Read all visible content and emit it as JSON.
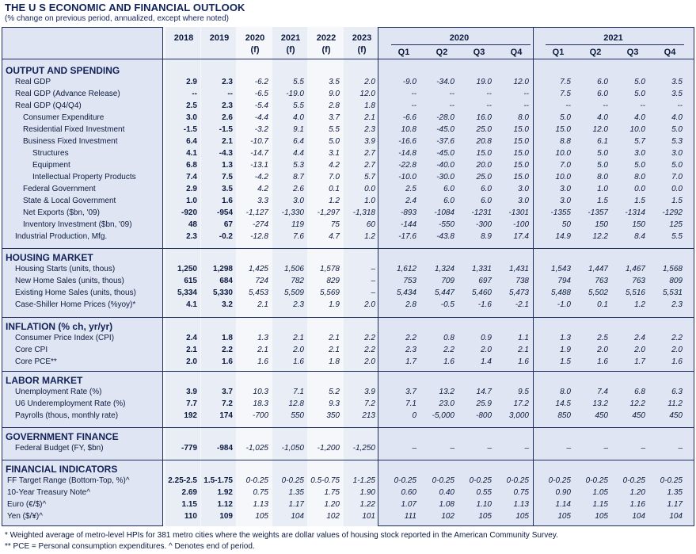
{
  "title": "THE U S ECONOMIC AND FINANCIAL OUTLOOK",
  "subtitle": "(% change on previous period, annualized, except where noted)",
  "annual_headers": [
    {
      "year": "2018",
      "sub": ""
    },
    {
      "year": "2019",
      "sub": ""
    },
    {
      "year": "2020",
      "sub": "(f)"
    },
    {
      "year": "2021",
      "sub": "(f)"
    },
    {
      "year": "2022",
      "sub": "(f)"
    },
    {
      "year": "2023",
      "sub": "(f)"
    }
  ],
  "quarter_groups": [
    {
      "year": "2020",
      "quarters": [
        "Q1",
        "Q2",
        "Q3",
        "Q4"
      ]
    },
    {
      "year": "2021",
      "quarters": [
        "Q1",
        "Q2",
        "Q3",
        "Q4"
      ]
    }
  ],
  "sections": [
    {
      "title": "OUTPUT AND SPENDING",
      "rows": [
        {
          "label": "Real GDP",
          "indent": 1,
          "values": [
            "2.9",
            "2.3",
            "-6.2",
            "5.5",
            "3.5",
            "2.0",
            "-9.0",
            "-34.0",
            "19.0",
            "12.0",
            "7.5",
            "6.0",
            "5.0",
            "3.5"
          ]
        },
        {
          "label": "Real GDP (Advance Release)",
          "indent": 1,
          "values": [
            "--",
            "--",
            "-6.5",
            "-19.0",
            "9.0",
            "12.0",
            "--",
            "--",
            "--",
            "--",
            "7.5",
            "6.0",
            "5.0",
            "3.5"
          ]
        },
        {
          "label": "Real GDP (Q4/Q4)",
          "indent": 1,
          "values": [
            "2.5",
            "2.3",
            "-5.4",
            "5.5",
            "2.8",
            "1.8",
            "--",
            "--",
            "--",
            "--",
            "--",
            "--",
            "--",
            "--"
          ]
        },
        {
          "label": "Consumer Expenditure",
          "indent": 2,
          "values": [
            "3.0",
            "2.6",
            "-4.4",
            "4.0",
            "3.7",
            "2.1",
            "-6.6",
            "-28.0",
            "16.0",
            "8.0",
            "5.0",
            "4.0",
            "4.0",
            "4.0"
          ]
        },
        {
          "label": "Residential Fixed Investment",
          "indent": 2,
          "values": [
            "-1.5",
            "-1.5",
            "-3.2",
            "9.1",
            "5.5",
            "2.3",
            "10.8",
            "-45.0",
            "25.0",
            "15.0",
            "15.0",
            "12.0",
            "10.0",
            "5.0"
          ]
        },
        {
          "label": "Business Fixed Investment",
          "indent": 2,
          "values": [
            "6.4",
            "2.1",
            "-10.7",
            "6.4",
            "5.0",
            "3.9",
            "-16.6",
            "-37.6",
            "20.8",
            "15.0",
            "8.8",
            "6.1",
            "5.7",
            "5.3"
          ]
        },
        {
          "label": "Structures",
          "indent": 3,
          "values": [
            "4.1",
            "-4.3",
            "-14.7",
            "4.4",
            "3.1",
            "2.7",
            "-14.8",
            "-45.0",
            "15.0",
            "15.0",
            "10.0",
            "5.0",
            "3.0",
            "3.0"
          ]
        },
        {
          "label": "Equipment",
          "indent": 3,
          "values": [
            "6.8",
            "1.3",
            "-13.1",
            "5.3",
            "4.2",
            "2.7",
            "-22.8",
            "-40.0",
            "20.0",
            "15.0",
            "7.0",
            "5.0",
            "5.0",
            "5.0"
          ]
        },
        {
          "label": "Intellectual Property Products",
          "indent": 3,
          "values": [
            "7.4",
            "7.5",
            "-4.2",
            "8.7",
            "7.0",
            "5.7",
            "-10.0",
            "-30.0",
            "25.0",
            "15.0",
            "10.0",
            "8.0",
            "8.0",
            "7.0"
          ]
        },
        {
          "label": "Federal Government",
          "indent": 2,
          "values": [
            "2.9",
            "3.5",
            "4.2",
            "2.6",
            "0.1",
            "0.0",
            "2.5",
            "6.0",
            "6.0",
            "3.0",
            "3.0",
            "1.0",
            "0.0",
            "0.0"
          ]
        },
        {
          "label": "State & Local Government",
          "indent": 2,
          "values": [
            "1.0",
            "1.6",
            "3.3",
            "3.0",
            "1.2",
            "1.0",
            "2.4",
            "6.0",
            "6.0",
            "3.0",
            "3.0",
            "1.5",
            "1.5",
            "1.5"
          ]
        },
        {
          "label": "Net Exports ($bn, '09)",
          "indent": 2,
          "values": [
            "-920",
            "-954",
            "-1,127",
            "-1,330",
            "-1,297",
            "-1,318",
            "-893",
            "-1084",
            "-1231",
            "-1301",
            "-1355",
            "-1357",
            "-1314",
            "-1292"
          ]
        },
        {
          "label": "Inventory Investment ($bn, '09)",
          "indent": 2,
          "values": [
            "48",
            "67",
            "-274",
            "119",
            "75",
            "60",
            "-144",
            "-550",
            "-300",
            "-100",
            "50",
            "150",
            "150",
            "125"
          ]
        },
        {
          "label": "Industrial Production, Mfg.",
          "indent": 1,
          "values": [
            "2.3",
            "-0.2",
            "-12.8",
            "7.6",
            "4.7",
            "1.2",
            "-17.6",
            "-43.8",
            "8.9",
            "17.4",
            "14.9",
            "12.2",
            "8.4",
            "5.5"
          ]
        }
      ]
    },
    {
      "title": "HOUSING MARKET",
      "rows": [
        {
          "label": "Housing Starts (units, thous)",
          "indent": 1,
          "values": [
            "1,250",
            "1,298",
            "1,425",
            "1,506",
            "1,578",
            "–",
            "1,612",
            "1,324",
            "1,331",
            "1,431",
            "1,543",
            "1,447",
            "1,467",
            "1,568"
          ]
        },
        {
          "label": "New Home Sales (units, thous)",
          "indent": 1,
          "values": [
            "615",
            "684",
            "724",
            "782",
            "829",
            "–",
            "753",
            "709",
            "697",
            "738",
            "794",
            "763",
            "763",
            "809"
          ]
        },
        {
          "label": "Existing Home Sales (units, thous)",
          "indent": 1,
          "values": [
            "5,334",
            "5,330",
            "5,453",
            "5,509",
            "5,569",
            "–",
            "5,434",
            "5,447",
            "5,460",
            "5,473",
            "5,488",
            "5,502",
            "5,516",
            "5,531"
          ]
        },
        {
          "label": "Case-Shiller Home Prices (%yoy)*",
          "indent": 1,
          "values": [
            "4.1",
            "3.2",
            "2.1",
            "2.3",
            "1.9",
            "2.0",
            "2.8",
            "-0.5",
            "-1.6",
            "-2.1",
            "-1.0",
            "0.1",
            "1.2",
            "2.3"
          ]
        }
      ]
    },
    {
      "title": "INFLATION (% ch, yr/yr)",
      "rows": [
        {
          "label": "Consumer Price Index (CPI)",
          "indent": 1,
          "values": [
            "2.4",
            "1.8",
            "1.3",
            "2.1",
            "2.1",
            "2.2",
            "2.2",
            "0.8",
            "0.9",
            "1.1",
            "1.3",
            "2.5",
            "2.4",
            "2.2"
          ]
        },
        {
          "label": "Core CPI",
          "indent": 1,
          "values": [
            "2.1",
            "2.2",
            "2.1",
            "2.0",
            "2.1",
            "2.2",
            "2.3",
            "2.2",
            "2.0",
            "2.1",
            "1.9",
            "2.0",
            "2.0",
            "2.0"
          ]
        },
        {
          "label": "Core PCE**",
          "indent": 1,
          "values": [
            "2.0",
            "1.6",
            "1.6",
            "1.6",
            "1.8",
            "2.0",
            "1.7",
            "1.6",
            "1.4",
            "1.6",
            "1.5",
            "1.6",
            "1.7",
            "1.6"
          ]
        }
      ]
    },
    {
      "title": "LABOR MARKET",
      "rows": [
        {
          "label": "Unemployment Rate (%)",
          "indent": 1,
          "values": [
            "3.9",
            "3.7",
            "10.3",
            "7.1",
            "5.2",
            "3.9",
            "3.7",
            "13.2",
            "14.7",
            "9.5",
            "8.0",
            "7.4",
            "6.8",
            "6.3"
          ]
        },
        {
          "label": "U6 Underemployment Rate (%)",
          "indent": 1,
          "values": [
            "7.7",
            "7.2",
            "18.3",
            "12.8",
            "9.3",
            "7.2",
            "7.1",
            "23.0",
            "25.9",
            "17.2",
            "14.5",
            "13.2",
            "12.2",
            "11.2"
          ]
        },
        {
          "label": "Payrolls (thous, monthly rate)",
          "indent": 1,
          "values": [
            "192",
            "174",
            "-700",
            "550",
            "350",
            "213",
            "0",
            "-5,000",
            "-800",
            "3,000",
            "850",
            "450",
            "450",
            "450"
          ]
        }
      ]
    },
    {
      "title": "GOVERNMENT FINANCE",
      "rows": [
        {
          "label": "Federal Budget (FY, $bn)",
          "indent": 1,
          "values": [
            "-779",
            "-984",
            "-1,025",
            "-1,050",
            "-1,200",
            "-1,250",
            "–",
            "–",
            "–",
            "–",
            "–",
            "–",
            "–",
            "–"
          ]
        }
      ]
    },
    {
      "title": "FINANCIAL INDICATORS",
      "rows": [
        {
          "label": "FF Target Range (Bottom-Top, %)^",
          "indent": 0,
          "values": [
            "2.25-2.5",
            "1.5-1.75",
            "0-0.25",
            "0-0.25",
            "0.5-0.75",
            "1-1.25",
            "0-0.25",
            "0-0.25",
            "0-0.25",
            "0-0.25",
            "0-0.25",
            "0-0.25",
            "0-0.25",
            "0-0.25"
          ]
        },
        {
          "label": "10-Year Treasury Note^",
          "indent": 0,
          "values": [
            "2.69",
            "1.92",
            "0.75",
            "1.35",
            "1.75",
            "1.90",
            "0.60",
            "0.40",
            "0.55",
            "0.75",
            "0.90",
            "1.05",
            "1.20",
            "1.35"
          ]
        },
        {
          "label": "Euro (€/$)^",
          "indent": 0,
          "values": [
            "1.15",
            "1.12",
            "1.13",
            "1.17",
            "1.20",
            "1.22",
            "1.07",
            "1.08",
            "1.10",
            "1.13",
            "1.14",
            "1.15",
            "1.16",
            "1.17"
          ]
        },
        {
          "label": "Yen ($/¥)^",
          "indent": 0,
          "values": [
            "110",
            "109",
            "105",
            "104",
            "102",
            "101",
            "111",
            "102",
            "105",
            "105",
            "105",
            "105",
            "104",
            "104"
          ]
        }
      ]
    }
  ],
  "footnotes": [
    "* Weighted average of metro-level HPIs for 381 metro cities where the weights are dollar values of housing stock reported in the American Community Survey.",
    "** PCE = Personal consumption expenditures.  ^ Denotes end of period."
  ]
}
